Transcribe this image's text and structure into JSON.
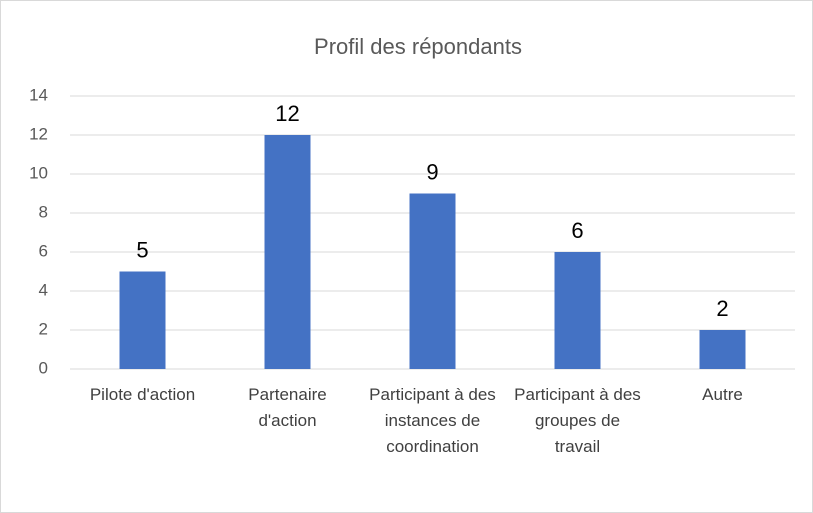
{
  "chart_data": {
    "type": "bar",
    "title": "Profil des répondants",
    "categories": [
      "Pilote d'action",
      "Partenaire d'action",
      "Participant à des instances de coordination",
      "Participant à des groupes de travail",
      "Autre"
    ],
    "values": [
      5,
      12,
      9,
      6,
      2
    ],
    "color": "#4472c4",
    "ylim": [
      0,
      14
    ],
    "yticks": [
      0,
      2,
      4,
      6,
      8,
      10,
      12,
      14
    ],
    "grid": true
  }
}
